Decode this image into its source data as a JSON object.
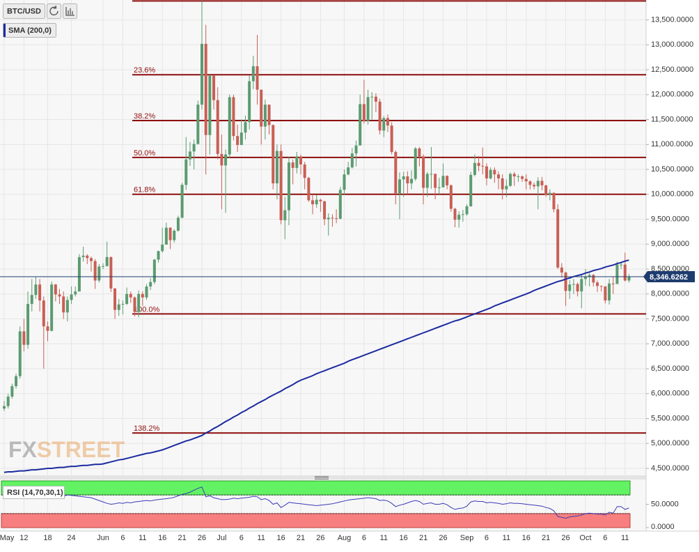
{
  "chart_data": {
    "type": "candlestick",
    "instrument": "BTC/USD",
    "categories": [
      "May",
      null,
      null,
      null,
      null,
      "12",
      null,
      null,
      null,
      null,
      null,
      "18",
      null,
      null,
      null,
      null,
      null,
      "24",
      null,
      null,
      null,
      null,
      null,
      null,
      null,
      "Jun",
      null,
      null,
      null,
      null,
      "6",
      null,
      null,
      null,
      null,
      "11",
      null,
      null,
      null,
      null,
      "16",
      null,
      null,
      null,
      null,
      "21",
      null,
      null,
      null,
      null,
      "26",
      null,
      null,
      null,
      null,
      "Jul",
      null,
      null,
      null,
      null,
      "6",
      null,
      null,
      null,
      null,
      "11",
      null,
      null,
      null,
      null,
      "16",
      null,
      null,
      null,
      null,
      "21",
      null,
      null,
      null,
      null,
      "26",
      null,
      null,
      null,
      null,
      null,
      "Aug",
      null,
      null,
      null,
      null,
      "6",
      null,
      null,
      null,
      null,
      "11",
      null,
      null,
      null,
      null,
      "16",
      null,
      null,
      null,
      null,
      "21",
      null,
      null,
      null,
      null,
      "26",
      null,
      null,
      null,
      null,
      null,
      "Sep",
      null,
      null,
      null,
      null,
      "6",
      null,
      null,
      null,
      null,
      "11",
      null,
      null,
      null,
      null,
      "16",
      null,
      null,
      null,
      null,
      "21",
      null,
      null,
      null,
      null,
      "26",
      null,
      null,
      null,
      null,
      "Oct",
      null,
      null,
      null,
      null,
      "6",
      null,
      null,
      null,
      null,
      "11",
      null
    ],
    "open": [
      5700,
      5750,
      5940,
      6150,
      6350,
      7250,
      6980,
      7800,
      7980,
      8190,
      7870,
      7350,
      7260,
      8190,
      7990,
      7950,
      7630,
      7880,
      7990,
      8050,
      8740,
      8770,
      8720,
      8660,
      8270,
      8550,
      8560,
      8740,
      8110,
      7680,
      7790,
      7800,
      8000,
      7930,
      7640,
      8000,
      7930,
      8150,
      8240,
      8690,
      8860,
      8990,
      9330,
      9080,
      9270,
      9530,
      10190,
      10700,
      10860,
      11010,
      11800,
      13020,
      11190,
      12380,
      11890,
      10810,
      10580,
      10800,
      11950,
      11170,
      10990,
      11240,
      11450,
      12270,
      12570,
      12100,
      11360,
      11800,
      11390,
      10220,
      10870,
      9480,
      9680,
      10640,
      10530,
      10760,
      10600,
      10330,
      9880,
      9800,
      9890,
      9860,
      9500,
      9530,
      9520,
      9510,
      10090,
      10400,
      10540,
      10820,
      10980,
      11810,
      11470,
      11950,
      11960,
      11860,
      11280,
      11530,
      11380,
      10850,
      10020,
      10300,
      10360,
      10220,
      10310,
      10920,
      10760,
      10130,
      10410,
      10410,
      10130,
      10140,
      10370,
      10180,
      9710,
      9490,
      9590,
      9600,
      9760,
      10390,
      10630,
      10570,
      10560,
      10320,
      10490,
      10400,
      10320,
      10100,
      10170,
      10410,
      10360,
      10360,
      10310,
      10260,
      10190,
      10160,
      10270,
      10180,
      9990,
      10030,
      9700,
      8530,
      8430,
      8060,
      8190,
      8200,
      8050,
      8300,
      8340,
      8380,
      8230,
      8160,
      8150,
      7870,
      8210,
      8200,
      8590,
      8590,
      8270
    ],
    "high": [
      5850,
      6000,
      6200,
      6400,
      7350,
      7500,
      8050,
      8300,
      8350,
      8300,
      7950,
      7450,
      8250,
      8200,
      8100,
      8050,
      7950,
      8150,
      8150,
      8800,
      8950,
      8800,
      8750,
      8700,
      8600,
      8620,
      9050,
      8750,
      8120,
      7900,
      7870,
      8130,
      8050,
      7950,
      8070,
      8050,
      8200,
      8320,
      8700,
      8870,
      9330,
      9430,
      9340,
      9300,
      9570,
      10230,
      11150,
      11050,
      11100,
      11880,
      13880,
      13400,
      12400,
      12400,
      12150,
      11200,
      10900,
      12000,
      12000,
      11400,
      11500,
      11580,
      12380,
      12780,
      13200,
      12100,
      11900,
      11800,
      11400,
      11000,
      11000,
      9950,
      10750,
      10700,
      10850,
      10800,
      10650,
      10350,
      10000,
      9990,
      9910,
      9870,
      9620,
      9600,
      9700,
      10150,
      10500,
      10650,
      10930,
      11080,
      12000,
      12300,
      12100,
      12050,
      12030,
      11920,
      11570,
      11600,
      11450,
      10880,
      10440,
      10450,
      10460,
      10480,
      10950,
      10950,
      10800,
      10450,
      10950,
      10420,
      10330,
      10620,
      10380,
      10200,
      9730,
      9660,
      9690,
      9800,
      10450,
      10800,
      10770,
      10940,
      10620,
      10540,
      10540,
      10460,
      10400,
      10300,
      10440,
      10450,
      10400,
      10380,
      10400,
      10280,
      10240,
      10340,
      10350,
      10190,
      10100,
      10040,
      9800,
      8620,
      8450,
      8280,
      8300,
      8230,
      8400,
      8500,
      8420,
      8400,
      8270,
      8170,
      8160,
      8300,
      8340,
      8650,
      8650,
      8830,
      8400
    ],
    "low": [
      5650,
      5700,
      5900,
      6100,
      6300,
      6850,
      6900,
      7650,
      7900,
      7650,
      6500,
      7050,
      7250,
      7850,
      7800,
      7500,
      7450,
      7800,
      7950,
      8050,
      8650,
      8600,
      8450,
      8100,
      8230,
      8500,
      8550,
      8040,
      7500,
      7560,
      7590,
      7780,
      7820,
      7550,
      7530,
      7760,
      7880,
      8080,
      8200,
      8630,
      8830,
      8990,
      8900,
      9030,
      9250,
      9520,
      10090,
      10570,
      10500,
      11000,
      11700,
      10400,
      10800,
      11700,
      10700,
      9700,
      9630,
      10720,
      11080,
      10850,
      10990,
      11100,
      11300,
      12110,
      11800,
      11000,
      11100,
      11200,
      10100,
      9900,
      9400,
      9100,
      9380,
      10200,
      10420,
      10400,
      10100,
      9850,
      9600,
      9730,
      9650,
      9380,
      9170,
      9350,
      9420,
      9500,
      9990,
      10380,
      10520,
      10560,
      10980,
      11420,
      11400,
      11500,
      11650,
      11200,
      11150,
      11250,
      10800,
      9800,
      9500,
      9950,
      10000,
      10100,
      10270,
      10560,
      9800,
      9950,
      10110,
      9900,
      10000,
      10140,
      10100,
      9650,
      9340,
      9330,
      9450,
      9570,
      9750,
      10360,
      10460,
      10400,
      10180,
      10300,
      10230,
      10100,
      9900,
      9940,
      10150,
      10170,
      10250,
      10250,
      10100,
      10100,
      10100,
      9700,
      10080,
      9950,
      9880,
      9640,
      8500,
      8330,
      7760,
      7900,
      8000,
      7950,
      7710,
      8170,
      8150,
      8150,
      8040,
      8050,
      7810,
      7790,
      8000,
      8200,
      8500,
      8250,
      8230
    ],
    "close": [
      5750,
      5940,
      6150,
      6350,
      7250,
      6980,
      7800,
      7980,
      8190,
      7870,
      7350,
      7260,
      8190,
      7990,
      7950,
      7630,
      7880,
      7990,
      8050,
      8740,
      8770,
      8720,
      8660,
      8270,
      8550,
      8560,
      8740,
      8110,
      7680,
      7790,
      7800,
      8000,
      7930,
      7640,
      8000,
      7930,
      8150,
      8240,
      8690,
      8860,
      8990,
      9330,
      9080,
      9270,
      9530,
      10190,
      10700,
      10860,
      11010,
      11800,
      13020,
      11190,
      12380,
      11890,
      10810,
      10580,
      10800,
      11950,
      11170,
      10990,
      11240,
      11450,
      12270,
      12570,
      12100,
      11360,
      11800,
      11390,
      10220,
      10870,
      9480,
      9680,
      10640,
      10530,
      10760,
      10600,
      10330,
      9880,
      9800,
      9890,
      9860,
      9500,
      9530,
      9520,
      9510,
      10090,
      10400,
      10540,
      10820,
      10980,
      11810,
      11470,
      11950,
      11960,
      11860,
      11280,
      11530,
      11380,
      10850,
      10020,
      10300,
      10360,
      10220,
      10310,
      10920,
      10760,
      10130,
      10410,
      10410,
      10130,
      10140,
      10370,
      10180,
      9710,
      9490,
      9590,
      9600,
      9760,
      10390,
      10630,
      10570,
      10560,
      10320,
      10490,
      10400,
      10320,
      10100,
      10170,
      10410,
      10360,
      10360,
      10310,
      10260,
      10190,
      10160,
      10270,
      10180,
      9990,
      10030,
      9700,
      8530,
      8430,
      8060,
      8190,
      8200,
      8050,
      8300,
      8340,
      8380,
      8230,
      8160,
      8150,
      7870,
      8210,
      8200,
      8590,
      8590,
      8270,
      8346.6262
    ],
    "up_color": "#5b9b70",
    "down_color": "#c85f55",
    "ylim": [
      4360,
      13900
    ],
    "yticks": [
      {
        "value": 4500,
        "label": "4,500.0000"
      },
      {
        "value": 5000,
        "label": "5,000.0000"
      },
      {
        "value": 5500,
        "label": "5,500.0000"
      },
      {
        "value": 6000,
        "label": "6,000.0000"
      },
      {
        "value": 6500,
        "label": "6,500.0000"
      },
      {
        "value": 7000,
        "label": "7,000.0000"
      },
      {
        "value": 7500,
        "label": "7,500.0000"
      },
      {
        "value": 8000,
        "label": "8,000.0000"
      },
      {
        "value": 8500,
        "label": "8,500.0000"
      },
      {
        "value": 9000,
        "label": "9,000.0000"
      },
      {
        "value": 9500,
        "label": "9,500.0000"
      },
      {
        "value": 10000,
        "label": "10,000.0000"
      },
      {
        "value": 10500,
        "label": "10,500.0000"
      },
      {
        "value": 11000,
        "label": "11,000.0000"
      },
      {
        "value": 11500,
        "label": "11,500.0000"
      },
      {
        "value": 12000,
        "label": "12,000.0000"
      },
      {
        "value": 12500,
        "label": "12,500.0000"
      },
      {
        "value": 13000,
        "label": "13,000.0000"
      },
      {
        "value": 13500,
        "label": "13,500.0000"
      }
    ],
    "grid": true,
    "overlays": [
      {
        "name": "SMA (200,0)",
        "color": "#1c2ba0",
        "values": [
          4420,
          4430,
          4430,
          4440,
          4450,
          4450,
          4460,
          4470,
          4470,
          4480,
          4490,
          4500,
          4500,
          4510,
          4520,
          4520,
          4530,
          4540,
          4540,
          4550,
          4560,
          4560,
          4570,
          4580,
          4580,
          4590,
          4610,
          4630,
          4650,
          4670,
          4680,
          4700,
          4720,
          4740,
          4760,
          4780,
          4800,
          4810,
          4830,
          4850,
          4870,
          4900,
          4930,
          4960,
          4990,
          5020,
          5050,
          5070,
          5100,
          5130,
          5160,
          5210,
          5250,
          5300,
          5340,
          5390,
          5440,
          5480,
          5530,
          5570,
          5620,
          5660,
          5710,
          5750,
          5800,
          5840,
          5880,
          5930,
          5970,
          6010,
          6050,
          6100,
          6140,
          6180,
          6230,
          6270,
          6300,
          6330,
          6360,
          6400,
          6430,
          6460,
          6490,
          6520,
          6550,
          6580,
          6610,
          6650,
          6680,
          6710,
          6740,
          6770,
          6800,
          6830,
          6860,
          6890,
          6920,
          6950,
          6980,
          7010,
          7040,
          7070,
          7100,
          7130,
          7160,
          7190,
          7220,
          7250,
          7280,
          7310,
          7340,
          7370,
          7400,
          7430,
          7460,
          7480,
          7510,
          7540,
          7570,
          7600,
          7630,
          7660,
          7690,
          7720,
          7760,
          7790,
          7820,
          7850,
          7880,
          7910,
          7940,
          7970,
          8000,
          8030,
          8070,
          8100,
          8130,
          8160,
          8190,
          8220,
          8250,
          8270,
          8300,
          8320,
          8350,
          8370,
          8390,
          8420,
          8440,
          8470,
          8490,
          8510,
          8540,
          8560,
          8580,
          8610,
          8630,
          8660,
          8680
        ]
      }
    ],
    "fib_levels": [
      {
        "value": 13880,
        "label": null
      },
      {
        "value": 12400,
        "label": "23.6%"
      },
      {
        "value": 11480,
        "label": "38.2%"
      },
      {
        "value": 10740,
        "label": "50.0%"
      },
      {
        "value": 10000,
        "label": "61.8%"
      },
      {
        "value": 7600,
        "label": "100.0%"
      },
      {
        "value": 5210,
        "label": "138.2%"
      }
    ],
    "fib_color": "#8e0e0e",
    "last_price": {
      "value": 8346.6262,
      "label": "8,346.6262"
    },
    "watermark": [
      "FX",
      "STREET"
    ],
    "rsi": {
      "name": "RSI (14,70,30,1)",
      "color": "#3b3bb8",
      "ylim": [
        0,
        100
      ],
      "upper": 70,
      "lower": 30,
      "yticks": [
        {
          "value": 0,
          "label": "0.0000"
        },
        {
          "value": 50,
          "label": "50.0000"
        }
      ],
      "values": [
        67,
        66,
        68,
        67,
        69,
        66,
        68,
        67,
        66,
        65,
        64,
        66,
        67,
        65,
        68,
        67,
        70,
        69,
        68,
        67,
        66,
        65,
        64,
        61,
        58,
        55,
        52,
        50,
        51,
        53,
        52,
        54,
        53,
        55,
        56,
        57,
        58,
        57,
        59,
        60,
        61,
        62,
        63,
        65,
        68,
        71,
        73,
        76,
        80,
        84,
        87,
        66,
        68,
        64,
        62,
        60,
        60,
        61,
        63,
        62,
        63,
        64,
        65,
        67,
        66,
        60,
        62,
        58,
        50,
        53,
        43,
        48,
        54,
        53,
        52,
        51,
        50,
        49,
        48,
        47,
        48,
        49,
        50,
        51,
        53,
        55,
        57,
        59,
        60,
        61,
        62,
        63,
        64,
        63,
        62,
        58,
        59,
        57,
        52,
        45,
        48,
        50,
        53,
        56,
        58,
        56,
        50,
        52,
        53,
        50,
        50,
        52,
        49,
        43,
        39,
        41,
        42,
        46,
        55,
        57,
        56,
        56,
        53,
        54,
        53,
        52,
        50,
        51,
        53,
        52,
        52,
        51,
        50,
        49,
        48,
        47,
        46,
        43,
        41,
        36,
        24,
        22,
        20,
        23,
        24,
        25,
        27,
        30,
        31,
        30,
        29,
        29,
        27,
        33,
        31,
        45,
        45,
        39,
        42
      ]
    }
  }
}
